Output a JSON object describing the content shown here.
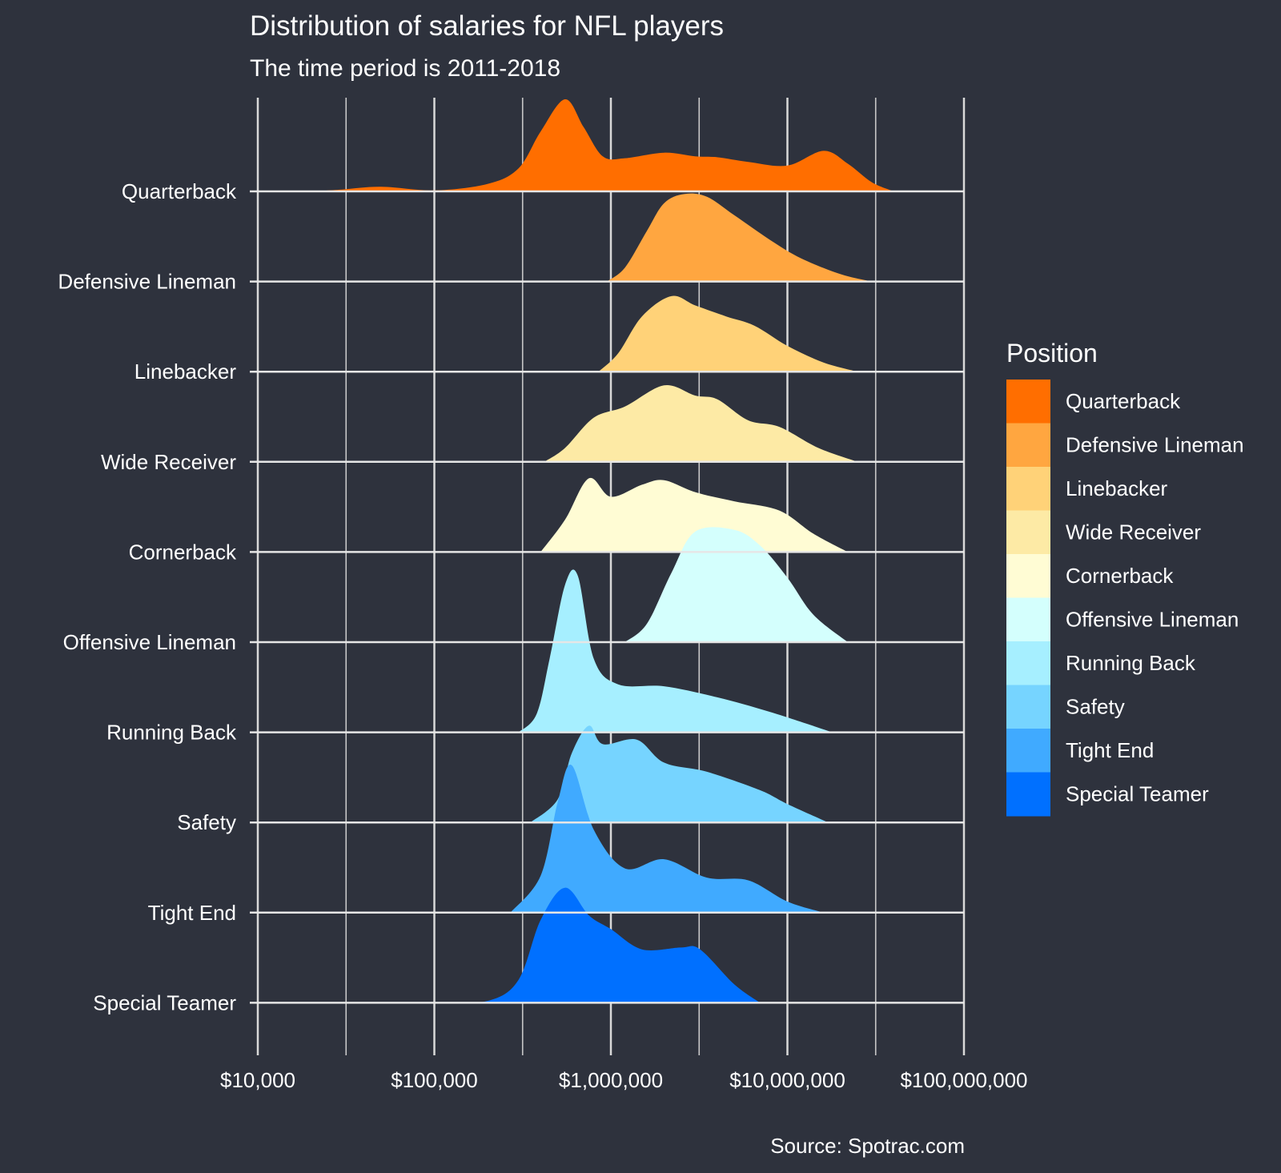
{
  "chart_data": {
    "type": "ridgeline",
    "title": "Distribution of salaries for NFL players",
    "subtitle": "The time period is 2011-2018",
    "caption": "Source: Spotrac.com",
    "xscale": "log10",
    "xlim": [
      10000,
      100000000
    ],
    "x_ticks": [
      {
        "value": 10000,
        "label": "$10,000"
      },
      {
        "value": 100000,
        "label": "$100,000"
      },
      {
        "value": 1000000,
        "label": "$1,000,000"
      },
      {
        "value": 10000000,
        "label": "$10,000,000"
      },
      {
        "value": 100000000,
        "label": "$100,000,000"
      }
    ],
    "grid": true,
    "legend": {
      "title": "Position",
      "placement": "right"
    },
    "series": [
      {
        "name": "Quarterback",
        "color": "#ff6e00",
        "density": [
          [
            20000,
            0
          ],
          [
            30000,
            0.02
          ],
          [
            50000,
            0.05
          ],
          [
            100000,
            0.01
          ],
          [
            200000,
            0.08
          ],
          [
            300000,
            0.25
          ],
          [
            400000,
            0.65
          ],
          [
            550000,
            1.0
          ],
          [
            700000,
            0.7
          ],
          [
            900000,
            0.38
          ],
          [
            1200000,
            0.36
          ],
          [
            2000000,
            0.42
          ],
          [
            3000000,
            0.38
          ],
          [
            4000000,
            0.37
          ],
          [
            6000000,
            0.32
          ],
          [
            10000000,
            0.28
          ],
          [
            16000000,
            0.44
          ],
          [
            22000000,
            0.3
          ],
          [
            30000000,
            0.1
          ],
          [
            40000000,
            0
          ]
        ]
      },
      {
        "name": "Defensive Lineman",
        "color": "#ffa640",
        "density": [
          [
            950000,
            0
          ],
          [
            1200000,
            0.15
          ],
          [
            1600000,
            0.55
          ],
          [
            2000000,
            0.85
          ],
          [
            2600000,
            0.95
          ],
          [
            3500000,
            0.92
          ],
          [
            5000000,
            0.72
          ],
          [
            8000000,
            0.45
          ],
          [
            12000000,
            0.25
          ],
          [
            20000000,
            0.08
          ],
          [
            30000000,
            0
          ]
        ]
      },
      {
        "name": "Linebacker",
        "color": "#ffd278",
        "density": [
          [
            850000,
            0
          ],
          [
            1100000,
            0.2
          ],
          [
            1500000,
            0.6
          ],
          [
            2200000,
            0.82
          ],
          [
            3000000,
            0.72
          ],
          [
            4500000,
            0.6
          ],
          [
            6500000,
            0.5
          ],
          [
            10000000,
            0.28
          ],
          [
            16000000,
            0.1
          ],
          [
            25000000,
            0
          ]
        ]
      },
      {
        "name": "Wide Receiver",
        "color": "#fdeaa5",
        "density": [
          [
            420000,
            0
          ],
          [
            550000,
            0.15
          ],
          [
            800000,
            0.48
          ],
          [
            1200000,
            0.6
          ],
          [
            2000000,
            0.83
          ],
          [
            3000000,
            0.72
          ],
          [
            4000000,
            0.68
          ],
          [
            6000000,
            0.45
          ],
          [
            9000000,
            0.38
          ],
          [
            15000000,
            0.15
          ],
          [
            25000000,
            0
          ]
        ]
      },
      {
        "name": "Cornerback",
        "color": "#fffcd4",
        "density": [
          [
            400000,
            0
          ],
          [
            550000,
            0.35
          ],
          [
            750000,
            0.8
          ],
          [
            1000000,
            0.6
          ],
          [
            1500000,
            0.73
          ],
          [
            2000000,
            0.78
          ],
          [
            3000000,
            0.65
          ],
          [
            5000000,
            0.55
          ],
          [
            9000000,
            0.45
          ],
          [
            14000000,
            0.2
          ],
          [
            22000000,
            0
          ]
        ]
      },
      {
        "name": "Offensive Lineman",
        "color": "#d4fffd",
        "density": [
          [
            1200000,
            0
          ],
          [
            1600000,
            0.2
          ],
          [
            2200000,
            0.75
          ],
          [
            3000000,
            1.2
          ],
          [
            5000000,
            1.22
          ],
          [
            7000000,
            1.05
          ],
          [
            10000000,
            0.7
          ],
          [
            14000000,
            0.3
          ],
          [
            22000000,
            0
          ]
        ]
      },
      {
        "name": "Running Back",
        "color": "#a6efff",
        "density": [
          [
            300000,
            0
          ],
          [
            380000,
            0.2
          ],
          [
            450000,
            0.8
          ],
          [
            550000,
            1.6
          ],
          [
            650000,
            1.7
          ],
          [
            800000,
            0.8
          ],
          [
            1100000,
            0.52
          ],
          [
            2000000,
            0.5
          ],
          [
            4000000,
            0.38
          ],
          [
            8000000,
            0.22
          ],
          [
            18000000,
            0
          ]
        ]
      },
      {
        "name": "Safety",
        "color": "#76d4ff",
        "density": [
          [
            350000,
            0
          ],
          [
            500000,
            0.25
          ],
          [
            600000,
            0.75
          ],
          [
            750000,
            1.05
          ],
          [
            900000,
            0.85
          ],
          [
            1400000,
            0.9
          ],
          [
            2000000,
            0.65
          ],
          [
            3500000,
            0.55
          ],
          [
            7000000,
            0.35
          ],
          [
            10000000,
            0.2
          ],
          [
            17000000,
            0
          ]
        ]
      },
      {
        "name": "Tight End",
        "color": "#40aaff",
        "density": [
          [
            270000,
            0
          ],
          [
            400000,
            0.4
          ],
          [
            500000,
            1.2
          ],
          [
            600000,
            1.6
          ],
          [
            800000,
            0.9
          ],
          [
            1200000,
            0.48
          ],
          [
            2000000,
            0.58
          ],
          [
            3500000,
            0.38
          ],
          [
            6000000,
            0.35
          ],
          [
            10000000,
            0.12
          ],
          [
            16000000,
            0
          ]
        ]
      },
      {
        "name": "Special Teamer",
        "color": "#0070ff",
        "density": [
          [
            100000,
            0
          ],
          [
            200000,
            0.02
          ],
          [
            300000,
            0.25
          ],
          [
            400000,
            0.9
          ],
          [
            550000,
            1.25
          ],
          [
            750000,
            0.95
          ],
          [
            1000000,
            0.8
          ],
          [
            1500000,
            0.58
          ],
          [
            2500000,
            0.6
          ],
          [
            3200000,
            0.58
          ],
          [
            5000000,
            0.2
          ],
          [
            7000000,
            0
          ]
        ]
      }
    ]
  }
}
